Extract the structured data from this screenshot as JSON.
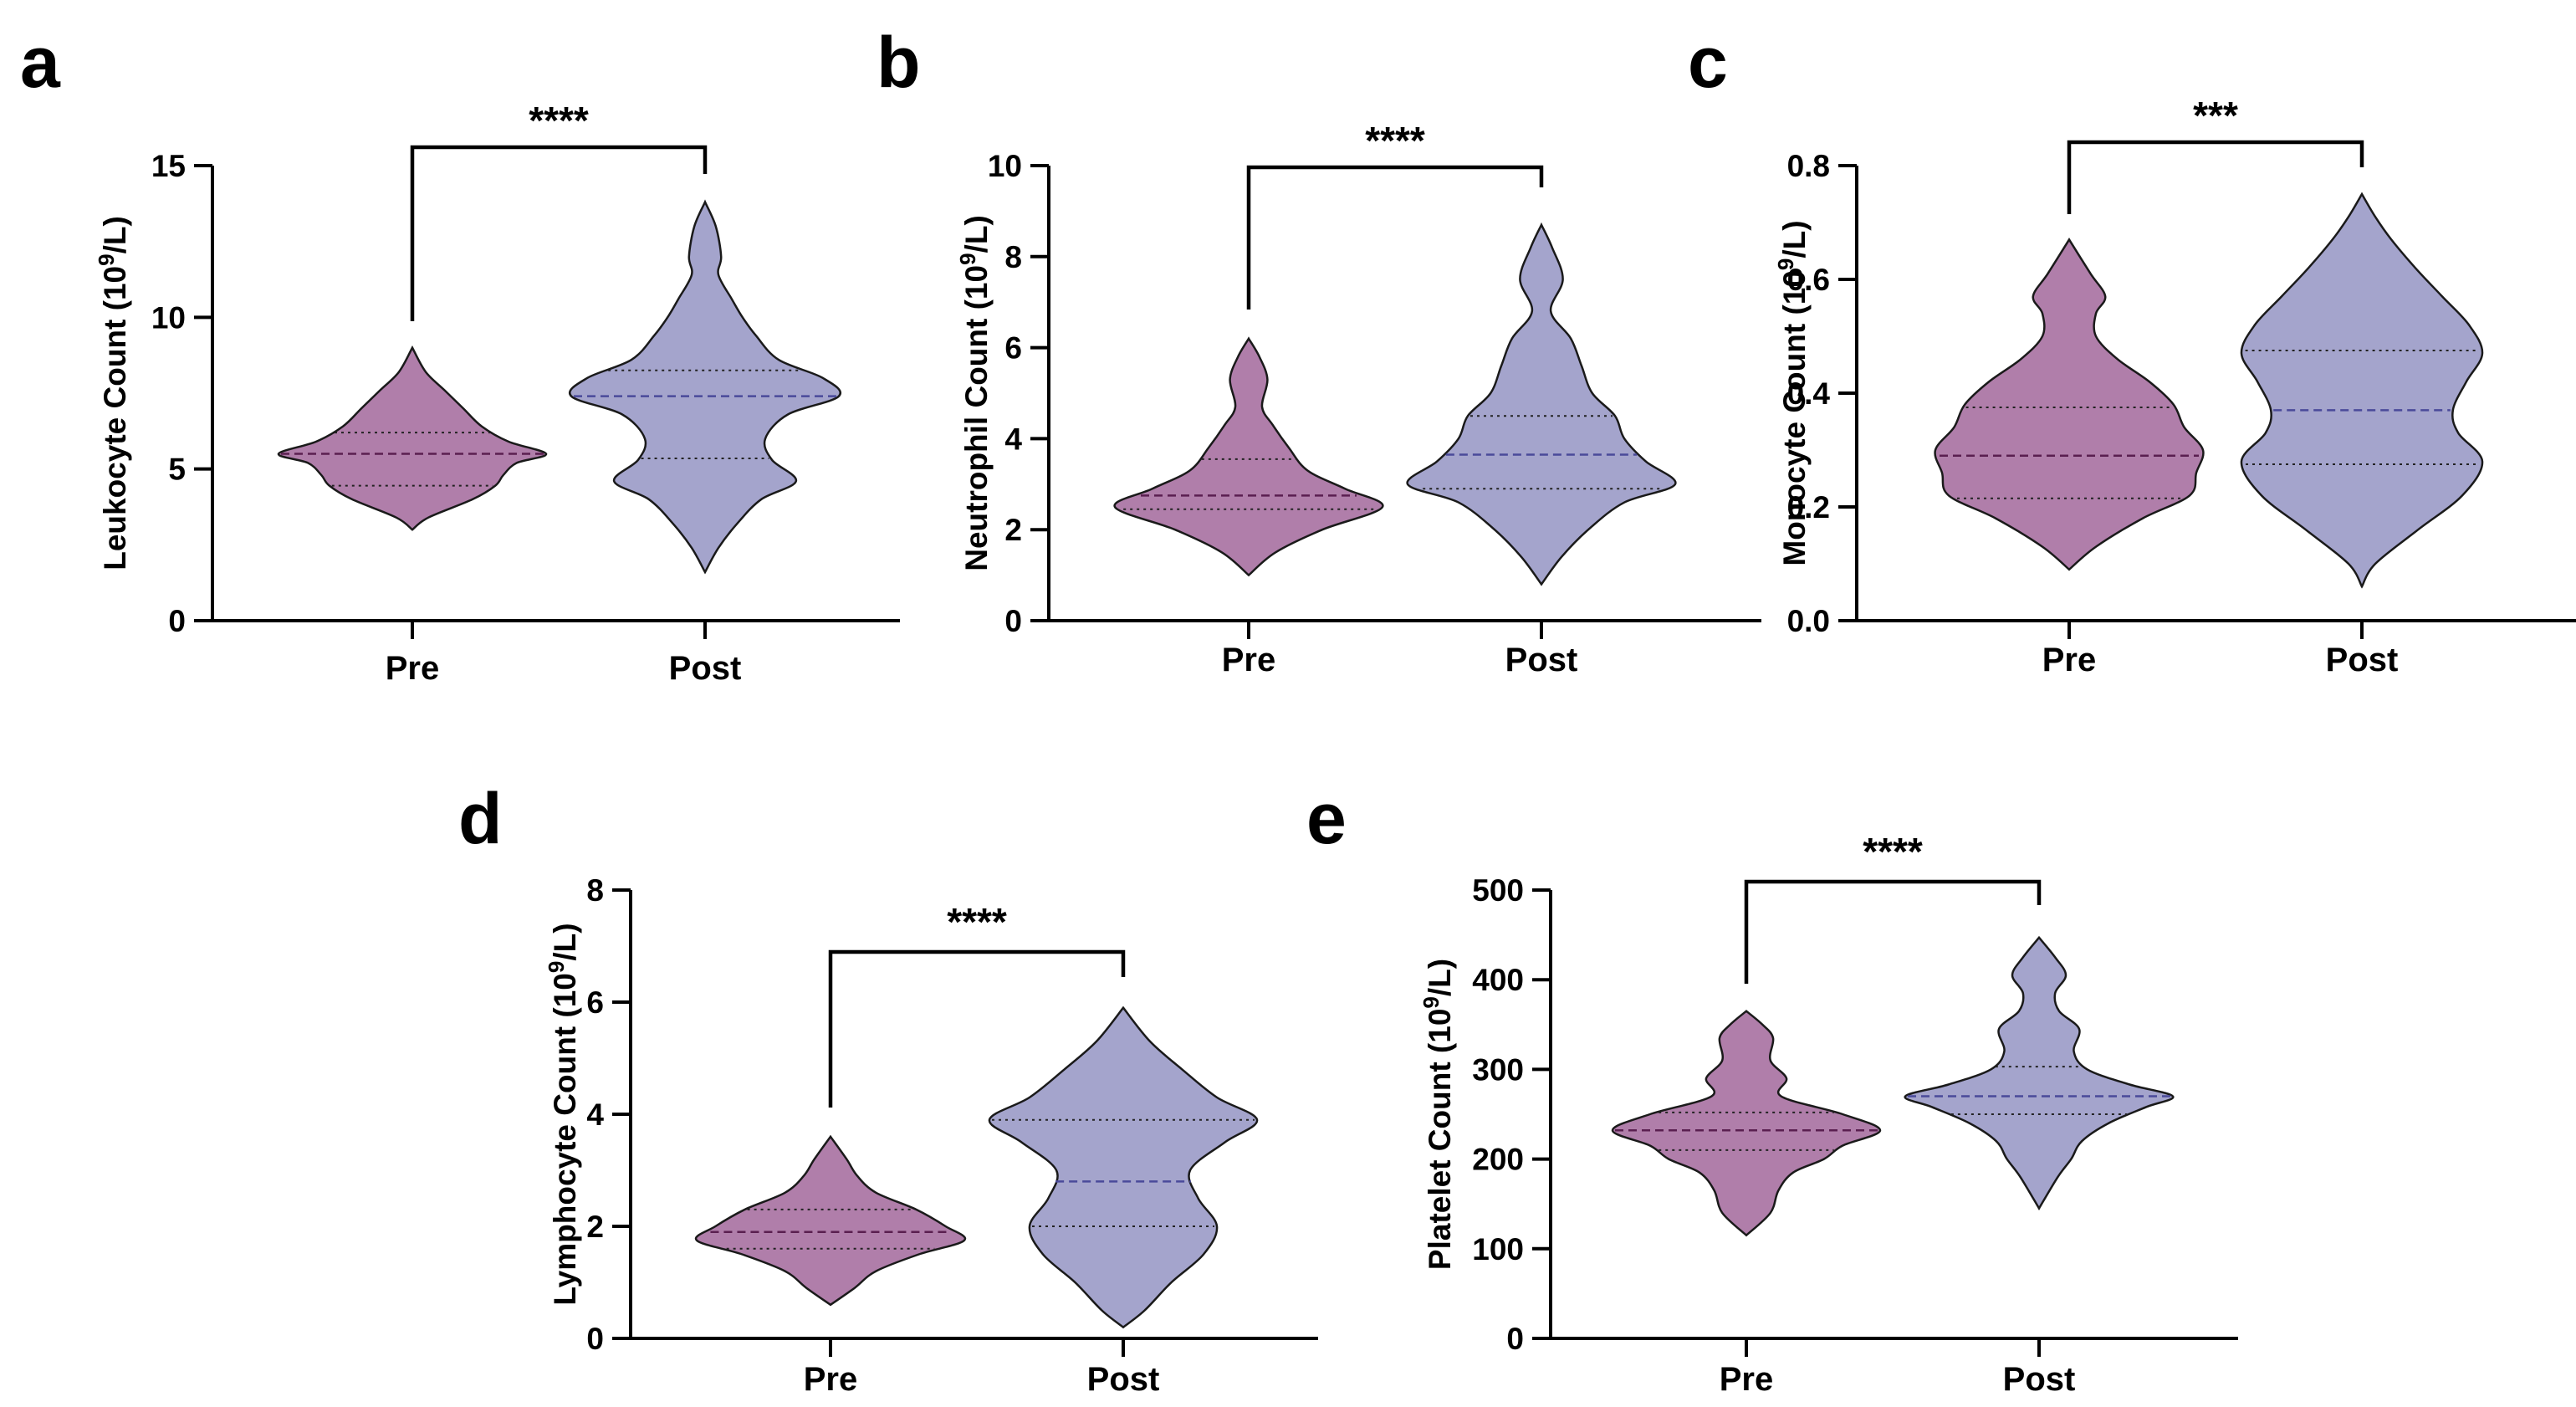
{
  "colors": {
    "pre": "#b07eaa",
    "post": "#a4a4cc",
    "pre_median": "#5a1f50",
    "post_median": "#4a4a9a"
  },
  "chart_data": [
    {
      "id": "a",
      "type": "violin",
      "panel_label": "a",
      "ylabel_prefix": "Leukocyte Count (10",
      "ylabel_sup": "9",
      "ylabel_suffix": "/L)",
      "ylim": [
        0,
        15
      ],
      "yticks": [
        0,
        5,
        10,
        15
      ],
      "ytick_labels": [
        "0",
        "5",
        "10",
        "15"
      ],
      "categories": [
        "Pre",
        "Post"
      ],
      "significance": "****",
      "series": [
        {
          "name": "Pre",
          "min": 3.0,
          "max": 9.0,
          "median": 5.5,
          "q1": 4.45,
          "q3": 6.2,
          "density": [
            [
              3.0,
              0
            ],
            [
              3.4,
              0.12
            ],
            [
              4.0,
              0.45
            ],
            [
              4.45,
              0.62
            ],
            [
              4.8,
              0.68
            ],
            [
              5.2,
              0.78
            ],
            [
              5.5,
              1.0
            ],
            [
              5.9,
              0.72
            ],
            [
              6.4,
              0.52
            ],
            [
              7.0,
              0.38
            ],
            [
              7.6,
              0.24
            ],
            [
              8.2,
              0.1
            ],
            [
              9.0,
              0
            ]
          ]
        },
        {
          "name": "Post",
          "min": 1.6,
          "max": 13.8,
          "median": 7.4,
          "q1": 5.35,
          "q3": 8.25,
          "density": [
            [
              1.6,
              0
            ],
            [
              2.4,
              0.1
            ],
            [
              3.2,
              0.24
            ],
            [
              4.0,
              0.42
            ],
            [
              4.6,
              0.68
            ],
            [
              5.3,
              0.5
            ],
            [
              6.0,
              0.45
            ],
            [
              6.8,
              0.62
            ],
            [
              7.4,
              1.0
            ],
            [
              8.0,
              0.88
            ],
            [
              8.6,
              0.55
            ],
            [
              9.4,
              0.38
            ],
            [
              10.0,
              0.28
            ],
            [
              10.6,
              0.2
            ],
            [
              11.4,
              0.1
            ],
            [
              12.0,
              0.12
            ],
            [
              13.0,
              0.08
            ],
            [
              13.8,
              0
            ]
          ]
        }
      ]
    },
    {
      "id": "b",
      "type": "violin",
      "panel_label": "b",
      "ylabel_prefix": "Neutrophil Count (10",
      "ylabel_sup": "9",
      "ylabel_suffix": "/L)",
      "ylim": [
        0,
        10
      ],
      "yticks": [
        0,
        2,
        4,
        6,
        8,
        10
      ],
      "ytick_labels": [
        "0",
        "2",
        "4",
        "6",
        "8",
        "10"
      ],
      "categories": [
        "Pre",
        "Post"
      ],
      "significance": "****",
      "series": [
        {
          "name": "Pre",
          "min": 1.0,
          "max": 6.2,
          "median": 2.75,
          "q1": 2.45,
          "q3": 3.55,
          "density": [
            [
              1.0,
              0
            ],
            [
              1.5,
              0.2
            ],
            [
              2.0,
              0.55
            ],
            [
              2.5,
              1.0
            ],
            [
              2.9,
              0.72
            ],
            [
              3.3,
              0.44
            ],
            [
              3.8,
              0.3
            ],
            [
              4.3,
              0.18
            ],
            [
              4.7,
              0.1
            ],
            [
              5.3,
              0.14
            ],
            [
              5.8,
              0.08
            ],
            [
              6.2,
              0
            ]
          ]
        },
        {
          "name": "Post",
          "min": 0.8,
          "max": 8.7,
          "median": 3.65,
          "q1": 2.9,
          "q3": 4.5,
          "density": [
            [
              0.8,
              0
            ],
            [
              1.4,
              0.15
            ],
            [
              2.0,
              0.35
            ],
            [
              2.6,
              0.62
            ],
            [
              3.0,
              1.0
            ],
            [
              3.5,
              0.78
            ],
            [
              4.0,
              0.62
            ],
            [
              4.5,
              0.55
            ],
            [
              5.0,
              0.38
            ],
            [
              5.6,
              0.3
            ],
            [
              6.2,
              0.22
            ],
            [
              6.8,
              0.07
            ],
            [
              7.5,
              0.16
            ],
            [
              8.2,
              0.08
            ],
            [
              8.7,
              0
            ]
          ]
        }
      ]
    },
    {
      "id": "c",
      "type": "violin",
      "panel_label": "c",
      "ylabel_prefix": "Monocyte Count (10",
      "ylabel_sup": "9",
      "ylabel_suffix": "/L)",
      "ylim": [
        0,
        0.8
      ],
      "yticks": [
        0,
        0.2,
        0.4,
        0.6,
        0.8
      ],
      "ytick_labels": [
        "0.0",
        "0.2",
        "0.4",
        "0.6",
        "0.8"
      ],
      "categories": [
        "Pre",
        "Post"
      ],
      "significance": "***",
      "series": [
        {
          "name": "Pre",
          "min": 0.09,
          "max": 0.67,
          "median": 0.29,
          "q1": 0.215,
          "q3": 0.375,
          "density": [
            [
              0.09,
              0
            ],
            [
              0.13,
              0.2
            ],
            [
              0.18,
              0.55
            ],
            [
              0.22,
              0.9
            ],
            [
              0.26,
              0.95
            ],
            [
              0.3,
              1.0
            ],
            [
              0.34,
              0.86
            ],
            [
              0.38,
              0.78
            ],
            [
              0.42,
              0.6
            ],
            [
              0.46,
              0.36
            ],
            [
              0.5,
              0.2
            ],
            [
              0.54,
              0.2
            ],
            [
              0.57,
              0.27
            ],
            [
              0.61,
              0.16
            ],
            [
              0.67,
              0
            ]
          ]
        },
        {
          "name": "Post",
          "min": 0.06,
          "max": 0.75,
          "median": 0.37,
          "q1": 0.275,
          "q3": 0.475,
          "density": [
            [
              0.06,
              0
            ],
            [
              0.1,
              0.1
            ],
            [
              0.16,
              0.42
            ],
            [
              0.22,
              0.75
            ],
            [
              0.28,
              0.9
            ],
            [
              0.33,
              0.72
            ],
            [
              0.37,
              0.68
            ],
            [
              0.42,
              0.78
            ],
            [
              0.47,
              0.9
            ],
            [
              0.52,
              0.8
            ],
            [
              0.57,
              0.6
            ],
            [
              0.62,
              0.4
            ],
            [
              0.67,
              0.22
            ],
            [
              0.71,
              0.1
            ],
            [
              0.75,
              0
            ]
          ]
        }
      ]
    },
    {
      "id": "d",
      "type": "violin",
      "panel_label": "d",
      "ylabel_prefix": "Lymphocyte Count (10",
      "ylabel_sup": "9",
      "ylabel_suffix": "/L)",
      "ylim": [
        0,
        8
      ],
      "yticks": [
        0,
        2,
        4,
        6,
        8
      ],
      "ytick_labels": [
        "0",
        "2",
        "4",
        "6",
        "8"
      ],
      "categories": [
        "Pre",
        "Post"
      ],
      "significance": "****",
      "series": [
        {
          "name": "Pre",
          "min": 0.6,
          "max": 3.6,
          "median": 1.9,
          "q1": 1.6,
          "q3": 2.3,
          "density": [
            [
              0.6,
              0
            ],
            [
              0.9,
              0.18
            ],
            [
              1.2,
              0.34
            ],
            [
              1.5,
              0.66
            ],
            [
              1.75,
              1.0
            ],
            [
              2.0,
              0.86
            ],
            [
              2.3,
              0.64
            ],
            [
              2.6,
              0.34
            ],
            [
              2.9,
              0.2
            ],
            [
              3.2,
              0.12
            ],
            [
              3.6,
              0
            ]
          ]
        },
        {
          "name": "Post",
          "min": 0.2,
          "max": 5.9,
          "median": 2.8,
          "q1": 2.0,
          "q3": 3.9,
          "density": [
            [
              0.2,
              0
            ],
            [
              0.5,
              0.16
            ],
            [
              1.0,
              0.36
            ],
            [
              1.5,
              0.6
            ],
            [
              2.0,
              0.7
            ],
            [
              2.5,
              0.56
            ],
            [
              3.0,
              0.5
            ],
            [
              3.5,
              0.76
            ],
            [
              3.9,
              1.0
            ],
            [
              4.3,
              0.7
            ],
            [
              4.8,
              0.44
            ],
            [
              5.3,
              0.2
            ],
            [
              5.9,
              0
            ]
          ]
        }
      ]
    },
    {
      "id": "e",
      "type": "violin",
      "panel_label": "e",
      "ylabel_prefix": "Platelet Count (10",
      "ylabel_sup": "9",
      "ylabel_suffix": "/L)",
      "ylim": [
        0,
        500
      ],
      "yticks": [
        0,
        100,
        200,
        300,
        400,
        500
      ],
      "ytick_labels": [
        "0",
        "100",
        "200",
        "300",
        "400",
        "500"
      ],
      "categories": [
        "Pre",
        "Post"
      ],
      "significance": "****",
      "series": [
        {
          "name": "Pre",
          "min": 115,
          "max": 365,
          "median": 232,
          "q1": 210,
          "q3": 252,
          "density": [
            [
              115,
              0
            ],
            [
              140,
              0.18
            ],
            [
              165,
              0.24
            ],
            [
              185,
              0.35
            ],
            [
              200,
              0.58
            ],
            [
              215,
              0.72
            ],
            [
              232,
              1.0
            ],
            [
              250,
              0.72
            ],
            [
              270,
              0.26
            ],
            [
              290,
              0.3
            ],
            [
              310,
              0.18
            ],
            [
              335,
              0.2
            ],
            [
              350,
              0.12
            ],
            [
              365,
              0
            ]
          ]
        },
        {
          "name": "Post",
          "min": 145,
          "max": 447,
          "median": 270,
          "q1": 250,
          "q3": 303,
          "density": [
            [
              145,
              0
            ],
            [
              180,
              0.14
            ],
            [
              200,
              0.24
            ],
            [
              220,
              0.32
            ],
            [
              240,
              0.52
            ],
            [
              258,
              0.8
            ],
            [
              270,
              1.0
            ],
            [
              283,
              0.68
            ],
            [
              300,
              0.36
            ],
            [
              320,
              0.26
            ],
            [
              345,
              0.3
            ],
            [
              365,
              0.15
            ],
            [
              385,
              0.12
            ],
            [
              405,
              0.2
            ],
            [
              425,
              0.12
            ],
            [
              447,
              0
            ]
          ]
        }
      ]
    }
  ]
}
